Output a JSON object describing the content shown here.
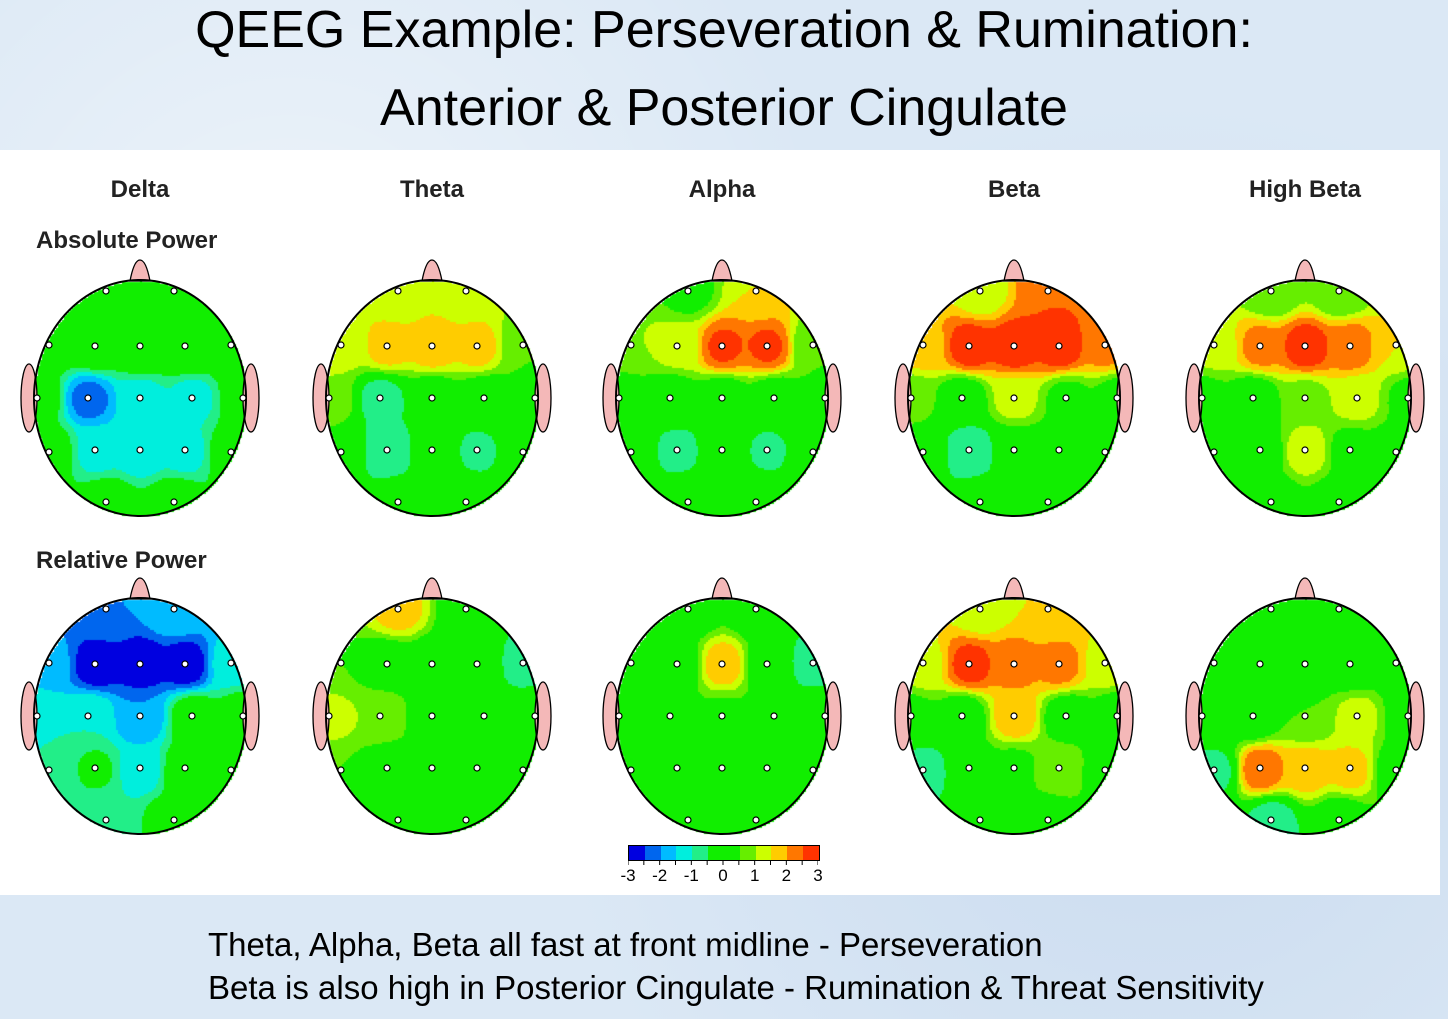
{
  "title": {
    "line1": "QEEG Example: Perseveration & Rumination:",
    "line2": "Anterior & Posterior Cingulate"
  },
  "columns": [
    "Delta",
    "Theta",
    "Alpha",
    "Beta",
    "High Beta"
  ],
  "rows": [
    "Absolute Power",
    "Relative Power"
  ],
  "colorbar": {
    "range": [
      -3,
      3
    ],
    "tick_labels": [
      "-3",
      "-2",
      "-1",
      "0",
      "1",
      "2",
      "3"
    ],
    "colors": [
      "#0000e0",
      "#0066ee",
      "#00bbff",
      "#00eedd",
      "#22ee88",
      "#11ee00",
      "#11ee00",
      "#66ee00",
      "#ccff00",
      "#ffcc00",
      "#ff7700",
      "#ff3300"
    ]
  },
  "head_colors": {
    "skin": "#f4b8b8",
    "outline": "#000000",
    "electrode": "#ffffff"
  },
  "maps": {
    "absolute": [
      [
        0,
        0,
        0,
        0,
        0.3,
        0.3,
        0.2,
        0,
        -2.2,
        -1.2,
        -1.2,
        0,
        0,
        -1.2,
        -1.3,
        -1.2,
        0,
        0,
        0
      ],
      [
        1.2,
        1.2,
        1.2,
        1.7,
        1.8,
        1.7,
        0.5,
        1.0,
        -0.8,
        0,
        0,
        0.3,
        0,
        -1,
        0,
        -0.6,
        0,
        0,
        0
      ],
      [
        0.3,
        1.5,
        1.0,
        1.2,
        2.6,
        2.6,
        0.5,
        0,
        0,
        0,
        0,
        0.3,
        0,
        -0.7,
        0,
        -0.6,
        0,
        0.3,
        0.3
      ],
      [
        1.2,
        2.5,
        1.8,
        2.8,
        2.8,
        2.8,
        2.2,
        0.7,
        0,
        1.2,
        0.3,
        0.2,
        0,
        -1,
        0,
        0,
        0,
        0,
        0
      ],
      [
        0.5,
        0.5,
        1.2,
        2.2,
        2.8,
        2.3,
        1.5,
        0.3,
        0,
        0.8,
        1.2,
        0.3,
        0,
        0,
        1.3,
        0.2,
        0,
        0,
        0
      ]
    ],
    "relative": [
      [
        -2,
        -1.5,
        -1.8,
        -2.8,
        -2.8,
        -2.8,
        -1.2,
        -1,
        -1,
        -2,
        0,
        0,
        -1,
        -0.4,
        -1.3,
        0,
        0,
        -1,
        0
      ],
      [
        1.7,
        0,
        0.5,
        0,
        0,
        0,
        -0.8,
        1.2,
        1.0,
        0,
        0.3,
        0.3,
        0.5,
        0,
        0,
        0,
        0,
        0,
        0.5
      ],
      [
        0,
        0,
        0,
        0,
        1.8,
        0,
        -0.8,
        0,
        0,
        0.4,
        0,
        0.5,
        0,
        0,
        0.4,
        0,
        0,
        0,
        0
      ],
      [
        1.2,
        1.5,
        1.3,
        2.7,
        2.2,
        2.2,
        1.3,
        0.3,
        0,
        1.8,
        0,
        0,
        -0.8,
        0,
        0.3,
        1.0,
        0,
        0,
        0
      ],
      [
        0,
        0,
        0,
        0,
        0,
        0,
        0,
        0,
        0,
        0.5,
        1.2,
        0,
        -0.7,
        2.4,
        1.8,
        1.7,
        0,
        -0.8,
        0
      ]
    ]
  },
  "caption": {
    "line1": "Theta, Alpha, Beta all fast at front midline - Perseveration",
    "line2": "Beta is also high in Posterior Cingulate - Rumination & Threat Sensitivity"
  }
}
